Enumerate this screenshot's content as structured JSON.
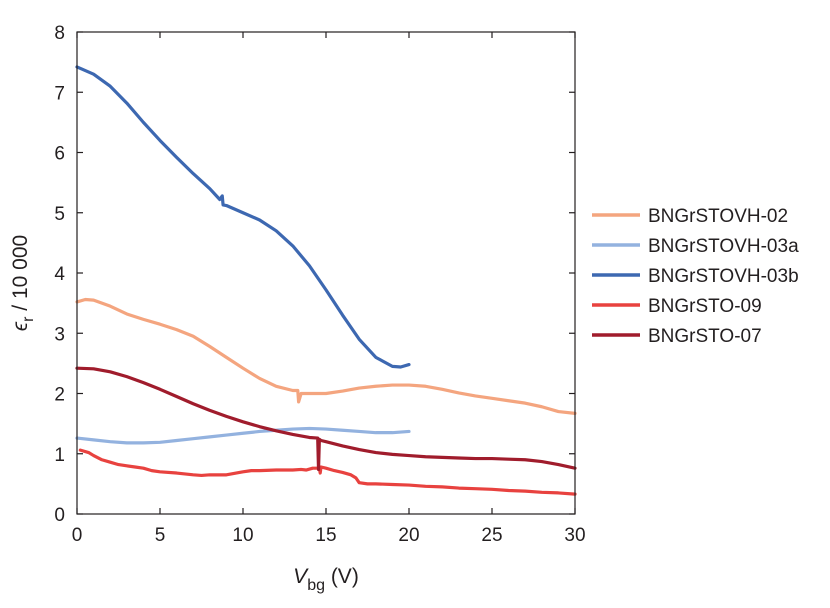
{
  "chart_data": {
    "type": "line",
    "title": "",
    "xlabel": {
      "main": "V",
      "subscript": "bg",
      "unit": " (V)"
    },
    "ylabel": {
      "main": "ϵ",
      "subscript": "r",
      "rest": " / 10 000"
    },
    "xlim": [
      0,
      30
    ],
    "ylim": [
      0,
      8
    ],
    "xticks": [
      0,
      5,
      10,
      15,
      20,
      25,
      30
    ],
    "yticks": [
      0,
      1,
      2,
      3,
      4,
      5,
      6,
      7,
      8
    ],
    "grid": false,
    "legend_position": "right",
    "series": [
      {
        "name": "BNGrSTOVH-02",
        "color": "#f4a57f",
        "x": [
          0,
          0.5,
          1,
          2,
          3,
          4,
          5,
          6,
          7,
          8,
          9,
          10,
          11,
          12,
          13,
          13.3,
          13.35,
          13.5,
          14,
          15,
          16,
          17,
          18,
          19,
          20,
          21,
          22,
          23,
          24,
          25,
          26,
          27,
          28,
          29,
          30
        ],
        "y": [
          3.52,
          3.56,
          3.55,
          3.45,
          3.32,
          3.23,
          3.15,
          3.06,
          2.95,
          2.78,
          2.6,
          2.42,
          2.25,
          2.12,
          2.05,
          2.05,
          1.86,
          2.0,
          2.0,
          2.0,
          2.04,
          2.09,
          2.12,
          2.14,
          2.14,
          2.12,
          2.07,
          2.01,
          1.96,
          1.92,
          1.88,
          1.84,
          1.78,
          1.7,
          1.67
        ]
      },
      {
        "name": "BNGrSTOVH-03a",
        "color": "#93b2df",
        "x": [
          0,
          1,
          2,
          3,
          4,
          5,
          6,
          7,
          8,
          9,
          10,
          11,
          12,
          13,
          14,
          15,
          16,
          17,
          18,
          19,
          20
        ],
        "y": [
          1.26,
          1.23,
          1.2,
          1.18,
          1.18,
          1.19,
          1.22,
          1.25,
          1.28,
          1.31,
          1.34,
          1.37,
          1.39,
          1.41,
          1.42,
          1.41,
          1.39,
          1.37,
          1.35,
          1.35,
          1.37
        ]
      },
      {
        "name": "BNGrSTOVH-03b",
        "color": "#3d68b1",
        "x": [
          0,
          1,
          2,
          3,
          4,
          5,
          6,
          7,
          8,
          8.6,
          8.75,
          8.8,
          9,
          10,
          11,
          12,
          13,
          14,
          15,
          16,
          17,
          18,
          19,
          19.5,
          20
        ],
        "y": [
          7.42,
          7.3,
          7.1,
          6.82,
          6.5,
          6.2,
          5.92,
          5.65,
          5.4,
          5.22,
          5.28,
          5.13,
          5.12,
          5.0,
          4.88,
          4.7,
          4.45,
          4.12,
          3.72,
          3.3,
          2.9,
          2.6,
          2.45,
          2.44,
          2.48
        ]
      },
      {
        "name": "BNGrSTO-09",
        "color": "#e8423f",
        "x": [
          0.2,
          0.7,
          1,
          1.5,
          2,
          2.5,
          3,
          3.5,
          4,
          4.5,
          5,
          6,
          7,
          7.5,
          8,
          9,
          10,
          10.5,
          11,
          12,
          13,
          13.5,
          13.8,
          14.2,
          14.6,
          14.65,
          14.7,
          15,
          15.5,
          16,
          16.5,
          16.8,
          17,
          17.5,
          18,
          19,
          20,
          21,
          22,
          23,
          24,
          25,
          26,
          27,
          28,
          29,
          30
        ],
        "y": [
          1.06,
          1.02,
          0.97,
          0.9,
          0.86,
          0.82,
          0.8,
          0.78,
          0.76,
          0.72,
          0.7,
          0.68,
          0.65,
          0.64,
          0.65,
          0.65,
          0.7,
          0.72,
          0.72,
          0.73,
          0.73,
          0.74,
          0.73,
          0.76,
          0.76,
          0.68,
          0.78,
          0.76,
          0.72,
          0.69,
          0.65,
          0.6,
          0.52,
          0.5,
          0.5,
          0.49,
          0.48,
          0.46,
          0.45,
          0.43,
          0.42,
          0.41,
          0.39,
          0.38,
          0.36,
          0.35,
          0.33
        ]
      },
      {
        "name": "BNGrSTO-07",
        "color": "#a01c2c",
        "x": [
          0,
          1,
          2,
          3,
          4,
          5,
          6,
          7,
          8,
          9,
          10,
          11,
          12,
          13,
          14,
          14.5,
          14.55,
          14.6,
          14.7,
          15,
          16,
          17,
          18,
          19,
          20,
          21,
          22,
          23,
          24,
          25,
          26,
          27,
          28,
          29,
          30
        ],
        "y": [
          2.42,
          2.41,
          2.36,
          2.28,
          2.18,
          2.07,
          1.95,
          1.83,
          1.72,
          1.62,
          1.53,
          1.45,
          1.38,
          1.32,
          1.27,
          1.26,
          0.74,
          1.24,
          1.22,
          1.2,
          1.13,
          1.07,
          1.02,
          0.99,
          0.97,
          0.95,
          0.94,
          0.93,
          0.92,
          0.92,
          0.91,
          0.9,
          0.87,
          0.82,
          0.76
        ]
      }
    ]
  }
}
